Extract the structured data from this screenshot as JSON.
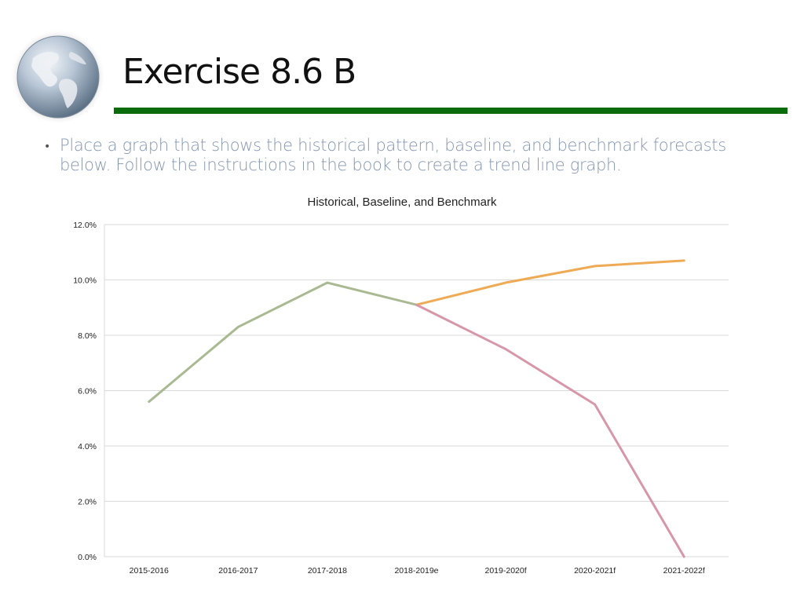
{
  "slide": {
    "title": "Exercise 8.6 B",
    "bullet": "Place a graph that shows the historical pattern, baseline, and benchmark forecasts below.  Follow the instructions in the book to create a trend line graph.",
    "bullet_marker": "•",
    "globe_icon": "globe-icon",
    "rule_color": "#0a6b0a"
  },
  "chart_data": {
    "type": "line",
    "title": "Historical, Baseline, and Benchmark",
    "xlabel": "",
    "ylabel": "",
    "categories": [
      "2015-2016",
      "2016-2017",
      "2017-2018",
      "2018-2019e",
      "2019-2020f",
      "2020-2021f",
      "2021-2022f"
    ],
    "ylim": [
      0,
      12
    ],
    "yticks": [
      "0.0%",
      "2.0%",
      "4.0%",
      "6.0%",
      "8.0%",
      "10.0%",
      "12.0%"
    ],
    "grid": true,
    "legend": "none",
    "series": [
      {
        "color": "#a9b991",
        "values": [
          5.6,
          8.3,
          9.9,
          9.1,
          null,
          null,
          null
        ]
      },
      {
        "color": "#eeaa55",
        "values": [
          null,
          null,
          null,
          9.1,
          9.9,
          10.5,
          10.7
        ]
      },
      {
        "color": "#d797a8",
        "values": [
          null,
          null,
          null,
          9.1,
          7.5,
          5.5,
          0.0
        ]
      }
    ]
  }
}
